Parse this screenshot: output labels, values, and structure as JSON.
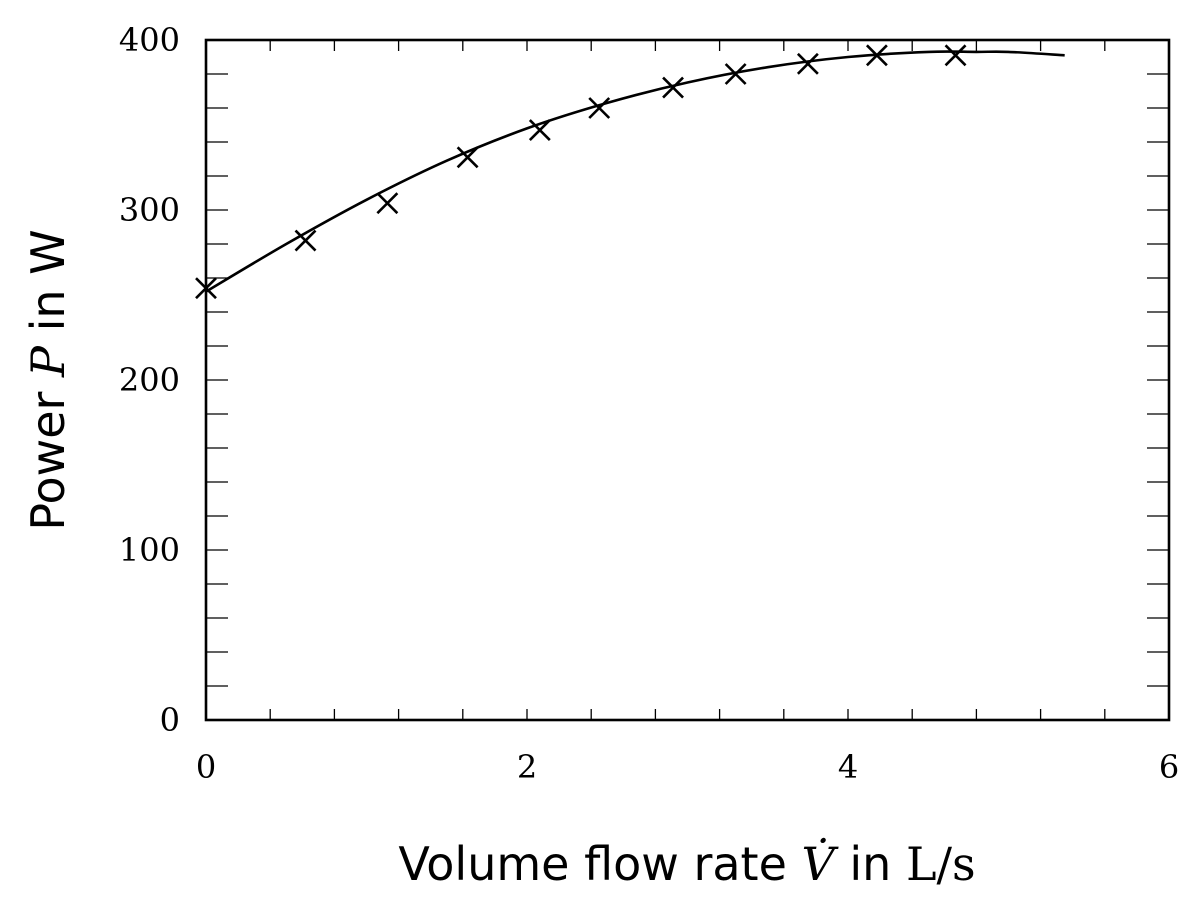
{
  "chart_data": {
    "type": "scatter",
    "xlabel": {
      "prefix": "Volume flow rate ",
      "symbol": "V̇",
      "middle": " in ",
      "unit": "L/s"
    },
    "ylabel": {
      "prefix": "Power ",
      "symbol": "P",
      "suffix": " in W"
    },
    "xlim": [
      0,
      6
    ],
    "ylim": [
      0,
      400
    ],
    "xticks": [
      0,
      2,
      4,
      6
    ],
    "yticks": [
      0,
      100,
      200,
      300,
      400
    ],
    "xtick_labels": [
      "0",
      "2",
      "4",
      "6"
    ],
    "ytick_labels": [
      "0",
      "100",
      "200",
      "300",
      "400"
    ],
    "x_minor_step": 0.4,
    "y_minor_step": 20,
    "grid": false,
    "marker": "cross",
    "line_color": "#000000",
    "series": [
      {
        "type": "scatter",
        "x": [
          0.0,
          0.62,
          1.13,
          1.63,
          2.08,
          2.45,
          2.91,
          3.3,
          3.75,
          4.18,
          4.67
        ],
        "y": [
          254,
          282,
          304,
          331,
          347,
          360,
          372,
          380,
          386,
          391,
          391
        ]
      },
      {
        "type": "line",
        "x": [
          0.0,
          0.5,
          1.0,
          1.5,
          2.0,
          2.5,
          3.0,
          3.5,
          4.0,
          4.5,
          4.8,
          5.0,
          5.35
        ],
        "y": [
          252,
          280,
          306,
          329,
          348,
          363,
          375,
          384,
          390,
          393,
          393,
          393,
          391
        ]
      }
    ]
  }
}
